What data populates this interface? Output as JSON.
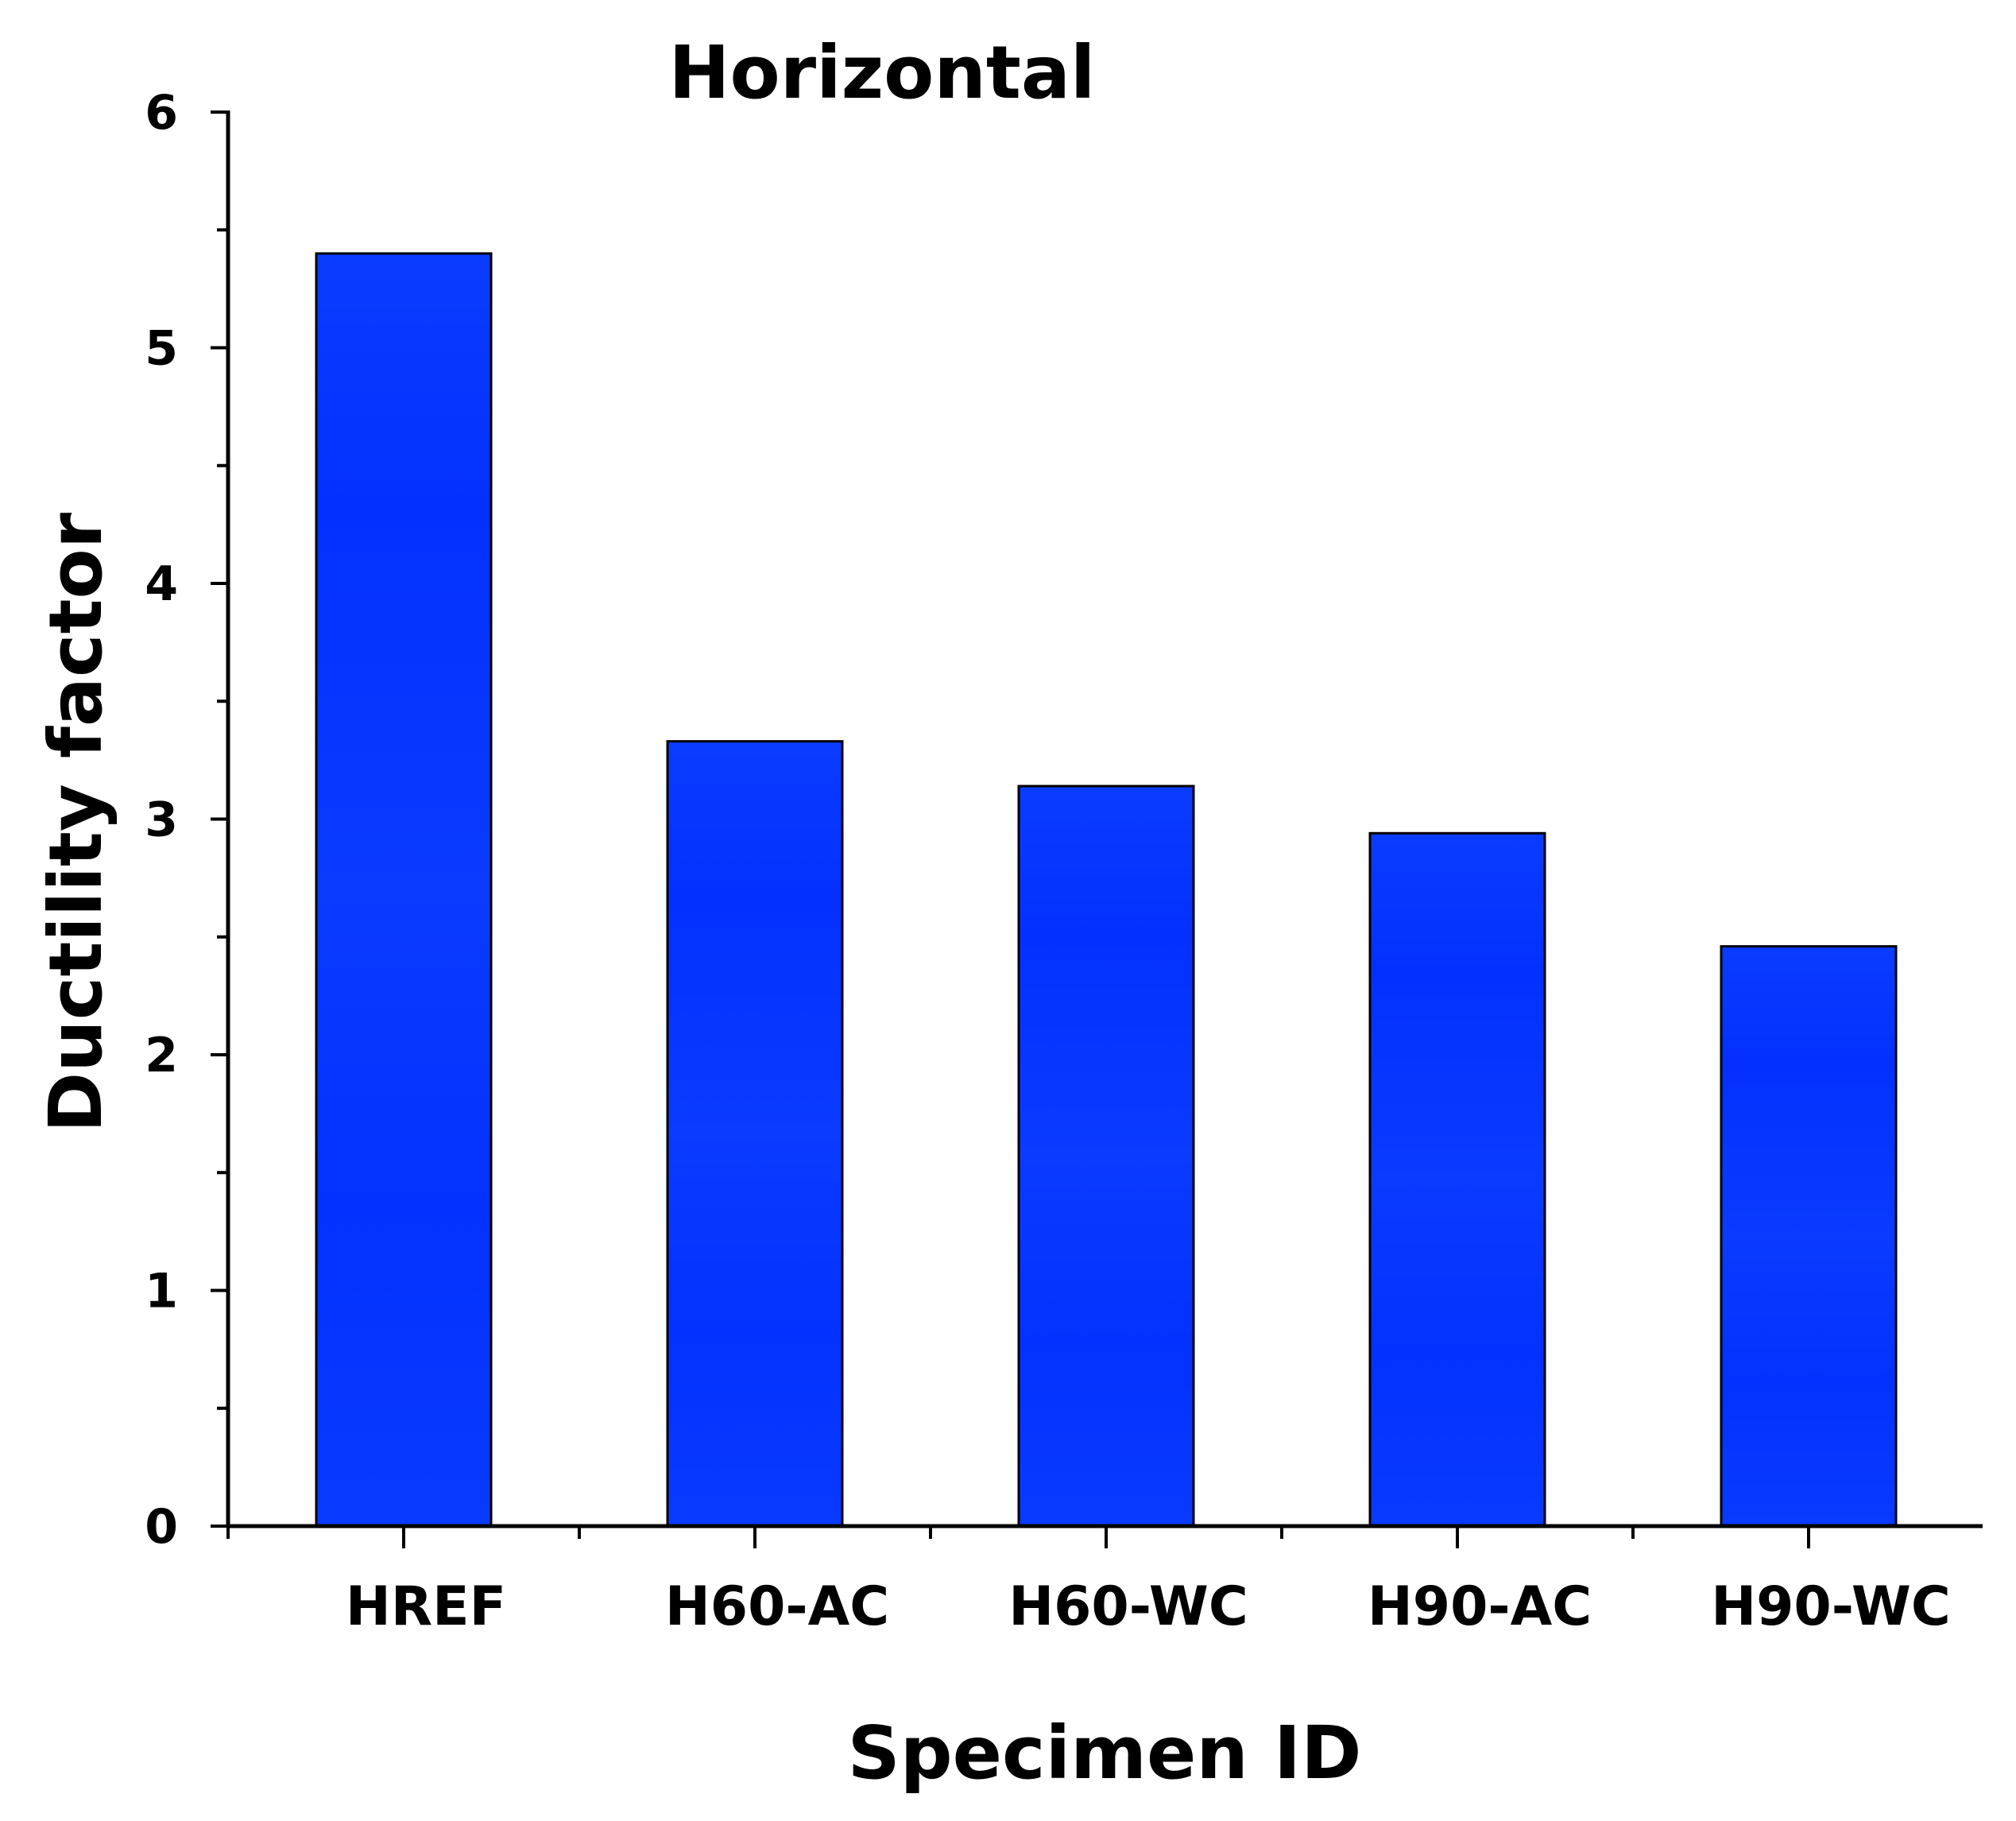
{
  "chart_data": {
    "type": "bar",
    "title": "Horizontal",
    "xlabel": "Specimen ID",
    "ylabel": "Ductility factor",
    "categories": [
      "HREF",
      "H60-AC",
      "H60-WC",
      "H90-AC",
      "H90-WC"
    ],
    "values": [
      5.4,
      3.33,
      3.14,
      2.94,
      2.46
    ],
    "ylim": [
      0,
      6
    ],
    "yticks": [
      "0",
      "1",
      "2",
      "3",
      "4",
      "5",
      "6"
    ],
    "grid": false,
    "legend": "none",
    "bar_color": "#0433FF",
    "bar_edge_color": "#000000"
  }
}
